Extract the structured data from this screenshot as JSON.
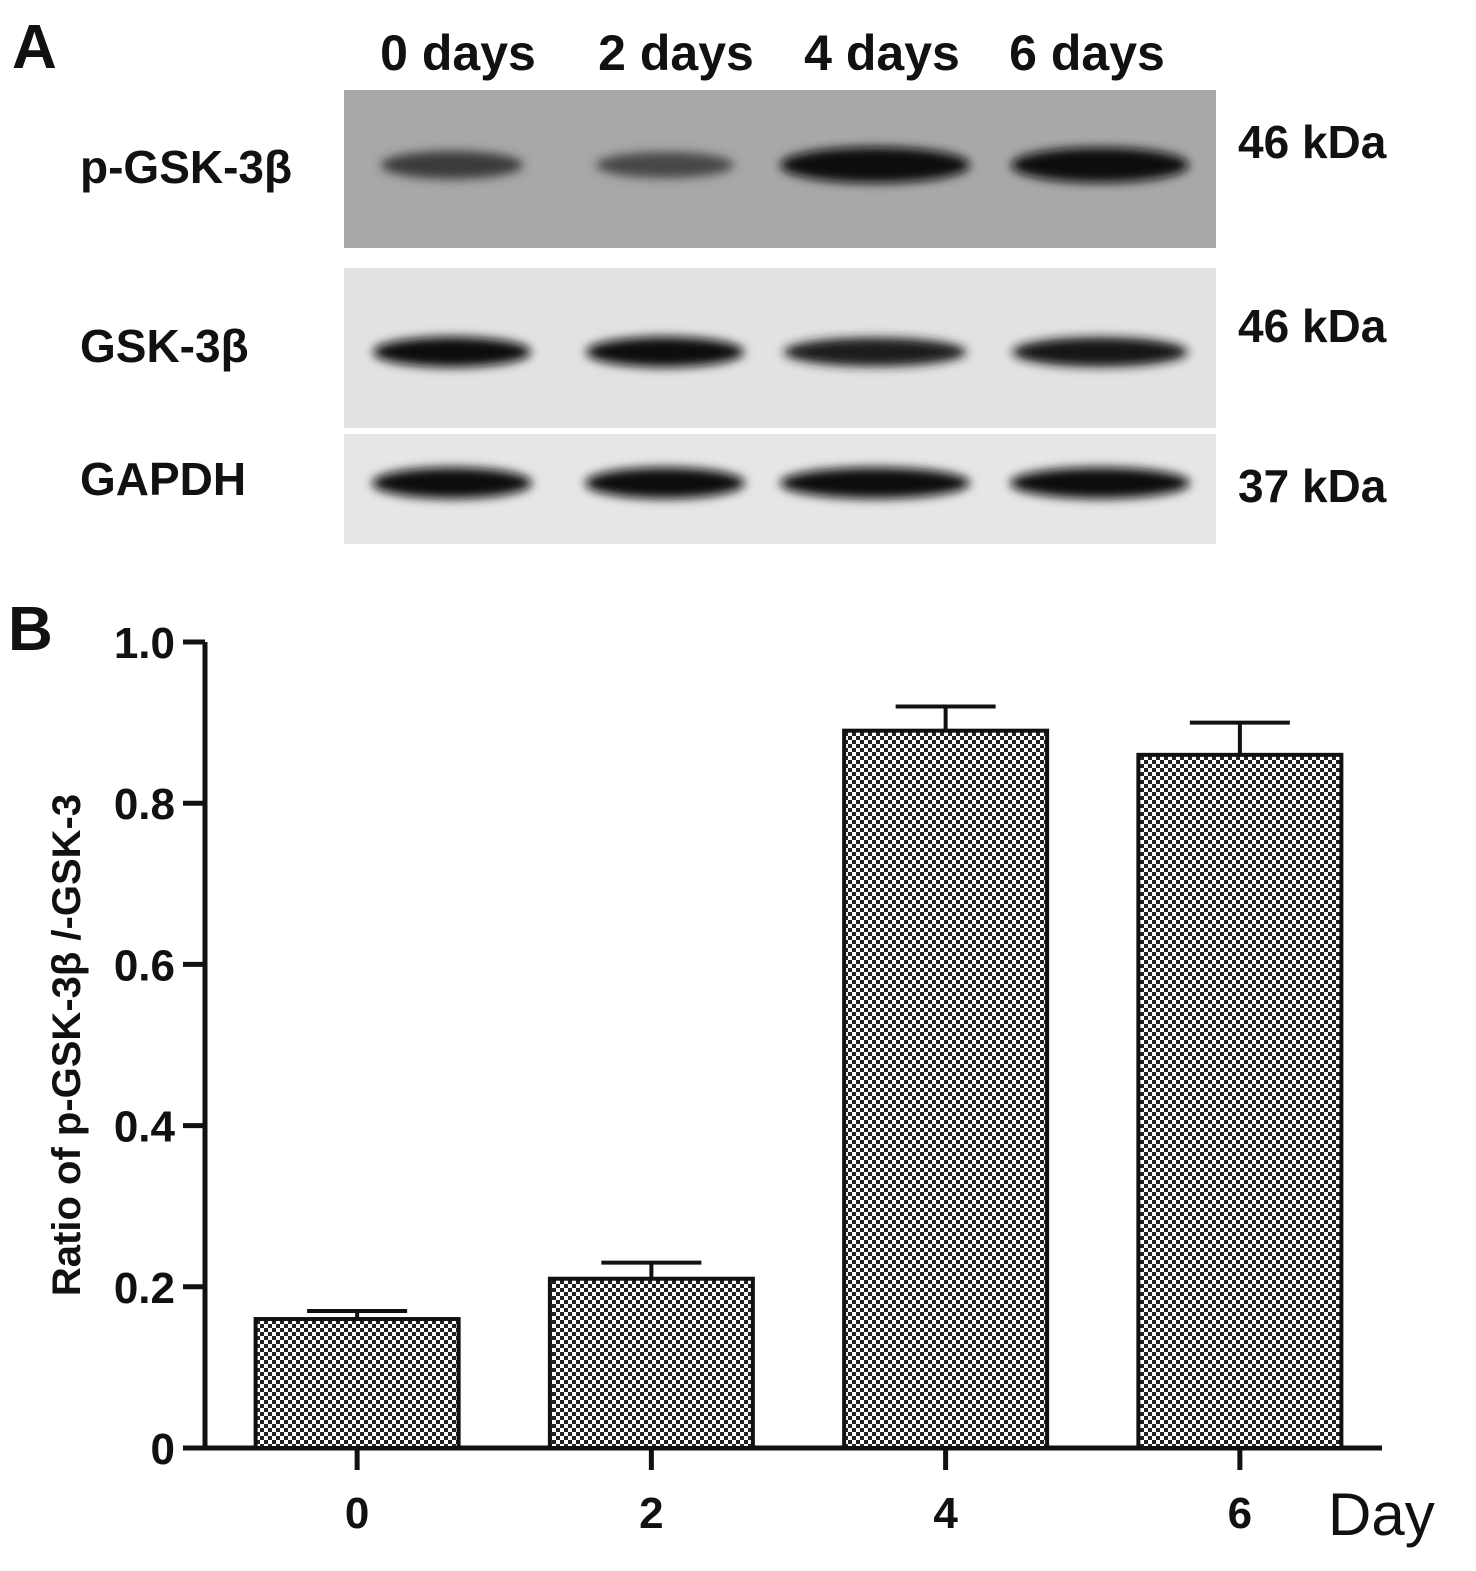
{
  "panel_a": {
    "letter": "A",
    "lanes": [
      "0 days",
      "2 days",
      "4 days",
      "6 days"
    ],
    "blots": [
      {
        "label": "p-GSK-3β",
        "kda": "46 kDa",
        "background": "#a8a8a8",
        "band_intensity": [
          0.55,
          0.45,
          1.0,
          0.95
        ]
      },
      {
        "label": "GSK-3β",
        "kda": "46 kDa",
        "background": "#e2e2e2",
        "band_intensity": [
          0.95,
          0.95,
          0.85,
          0.9
        ]
      },
      {
        "label": "GAPDH",
        "kda": "37 kDa",
        "background": "#e6e6e6",
        "band_intensity": [
          1.0,
          1.0,
          1.0,
          1.0
        ]
      }
    ]
  },
  "panel_b": {
    "letter": "B"
  },
  "chart_data": {
    "type": "bar",
    "categories": [
      "0",
      "2",
      "4",
      "6"
    ],
    "values": [
      0.16,
      0.21,
      0.89,
      0.86
    ],
    "error": [
      0.01,
      0.02,
      0.03,
      0.04
    ],
    "title": "",
    "xlabel": "Day",
    "ylabel": "Ratio of p-GSK-3β /-GSK-3",
    "ylim": [
      0,
      1.0
    ],
    "yticks": [
      "0",
      "0.2",
      "0.4",
      "0.6",
      "0.8",
      "1.0"
    ],
    "ytick_values": [
      0,
      0.2,
      0.4,
      0.6,
      0.8,
      1.0
    ],
    "grid": false,
    "bar_fill": "checkerboard"
  }
}
